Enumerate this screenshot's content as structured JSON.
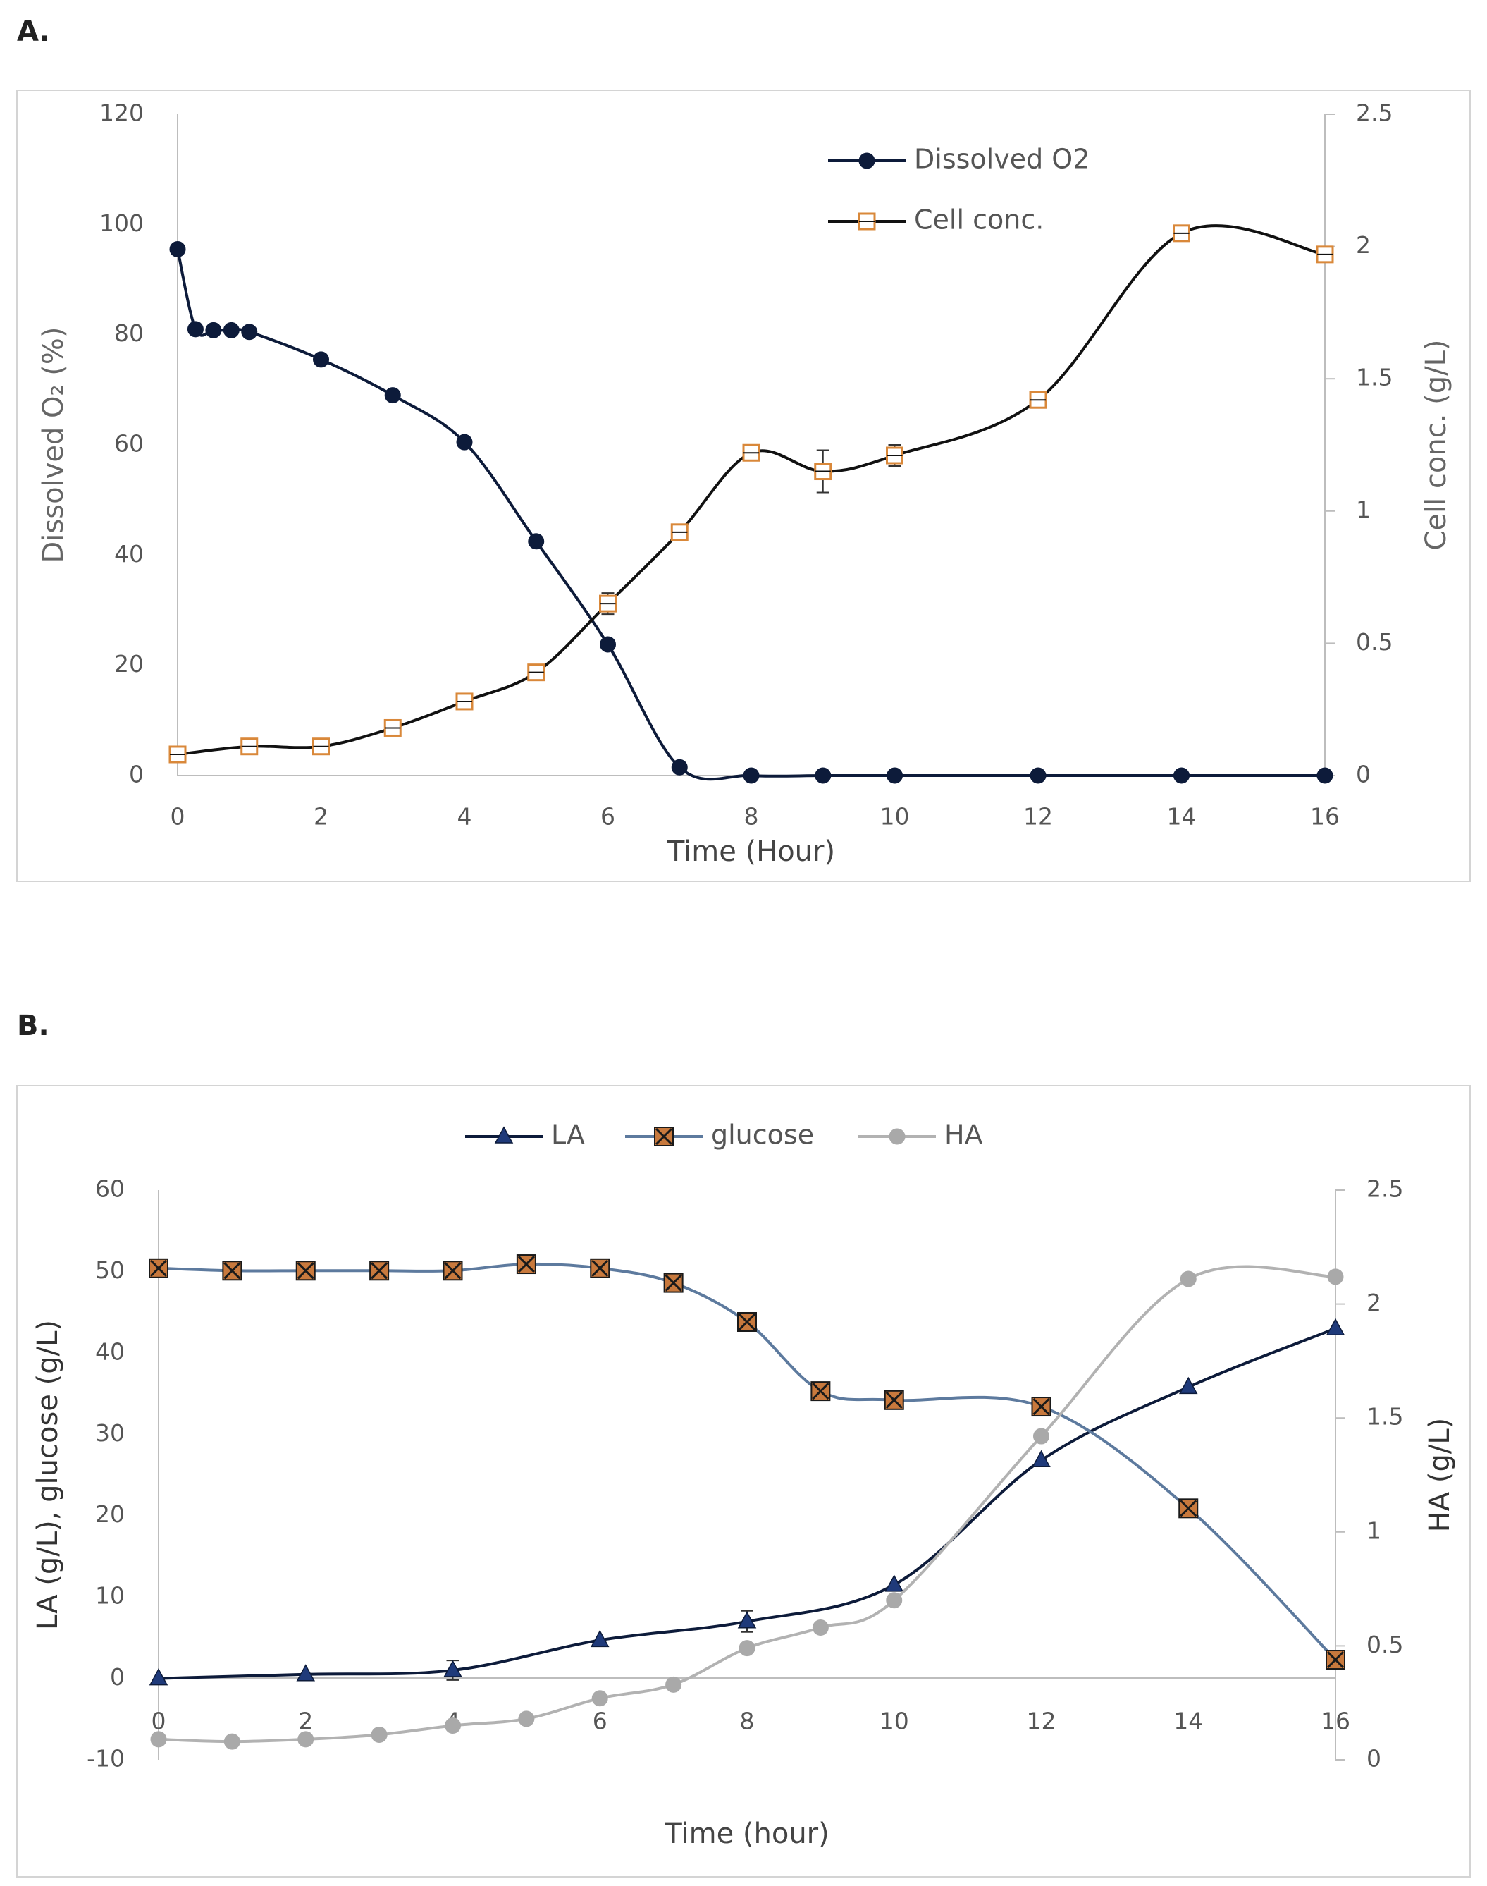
{
  "panels": {
    "a": {
      "letter": "A."
    },
    "b": {
      "letter": "B."
    }
  },
  "chart_data": [
    {
      "type": "line",
      "panel": "A.",
      "xlabel": "Time (Hour)",
      "ylabel": "Dissolved O₂ (%)",
      "y2label": "Cell  conc.  (g/L)",
      "xlim": [
        0,
        16
      ],
      "ylim": [
        0,
        120
      ],
      "y2lim": [
        0,
        2.5
      ],
      "xticks": [
        "0",
        "2",
        "4",
        "6",
        "8",
        "10",
        "12",
        "14",
        "16"
      ],
      "yticks": [
        "0",
        "20",
        "40",
        "60",
        "80",
        "100",
        "120"
      ],
      "y2ticks": [
        "0",
        "0.5",
        "1",
        "1.5",
        "2",
        "2.5"
      ],
      "legend_position": "top-center",
      "grid": false,
      "series": [
        {
          "name": "Dissolved O2",
          "axis": "left",
          "color": "#0d1b3a",
          "marker": "circle",
          "x": [
            0,
            0.25,
            0.5,
            0.75,
            1,
            2,
            3,
            4,
            5,
            6,
            7,
            8,
            9,
            10,
            12,
            14,
            16
          ],
          "y": [
            95.5,
            81,
            80.8,
            80.8,
            80.5,
            75.5,
            69,
            60.5,
            42.5,
            23.8,
            1.5,
            0,
            0,
            0,
            0,
            0,
            0
          ]
        },
        {
          "name": "Cell conc.",
          "axis": "right",
          "color": "#111111",
          "markerColor": "#d9883a",
          "marker": "square-open",
          "x": [
            0,
            1,
            2,
            3,
            4,
            5,
            6,
            7,
            8,
            9,
            10,
            12,
            14,
            16
          ],
          "y": [
            0.08,
            0.11,
            0.11,
            0.18,
            0.28,
            0.39,
            0.65,
            0.92,
            1.22,
            1.15,
            1.21,
            1.42,
            2.05,
            1.97
          ],
          "err": [
            0,
            0,
            0,
            0,
            0,
            0,
            0.04,
            0,
            0,
            0.08,
            0.04,
            0,
            0,
            0
          ]
        }
      ]
    },
    {
      "type": "line",
      "panel": "B.",
      "xlabel": "Time (hour)",
      "ylabel": "LA (g/L), glucose (g/L)",
      "y2label": "HA (g/L)",
      "xlim": [
        0,
        16
      ],
      "ylim": [
        -10,
        60
      ],
      "y2lim": [
        0,
        2.5
      ],
      "xticks": [
        "0",
        "2",
        "4",
        "6",
        "8",
        "10",
        "12",
        "14",
        "16"
      ],
      "yticks": [
        "-10",
        "0",
        "10",
        "20",
        "30",
        "40",
        "50",
        "60"
      ],
      "y2ticks": [
        "0",
        "0.5",
        "1",
        "1.5",
        "2",
        "2.5"
      ],
      "legend_position": "top-center",
      "grid": false,
      "series": [
        {
          "name": "LA",
          "axis": "left",
          "color": "#0d1b3a",
          "markerColor": "#1f3a7a",
          "marker": "triangle",
          "x": [
            0,
            2,
            4,
            6,
            8,
            10,
            12,
            14,
            16
          ],
          "y": [
            0,
            0.5,
            1,
            4.7,
            7,
            11.5,
            26.8,
            35.8,
            43
          ],
          "err": [
            0,
            0,
            1.2,
            0,
            1.3,
            0,
            0,
            0,
            0
          ]
        },
        {
          "name": "glucose",
          "axis": "left",
          "color": "#5d7a9e",
          "markerColor": "#c8793d",
          "marker": "square-x",
          "x": [
            0,
            1,
            2,
            3,
            4,
            5,
            6,
            7,
            8,
            9,
            10,
            12,
            14,
            16
          ],
          "y": [
            50.4,
            50.1,
            50.1,
            50.1,
            50.1,
            50.9,
            50.4,
            48.6,
            43.8,
            35.3,
            34.2,
            33.4,
            20.9,
            2.3
          ],
          "err": [
            0,
            0,
            0,
            0,
            0,
            0,
            0,
            0,
            0,
            0.9,
            0,
            0,
            0,
            0
          ]
        },
        {
          "name": "HA",
          "axis": "right",
          "color": "#b2b2b2",
          "markerColor": "#a9a9a9",
          "marker": "circle",
          "x": [
            0,
            1,
            2,
            3,
            4,
            5,
            6,
            7,
            8,
            9,
            10,
            12,
            14,
            16
          ],
          "y": [
            0.09,
            0.08,
            0.09,
            0.11,
            0.15,
            0.18,
            0.27,
            0.33,
            0.49,
            0.58,
            0.7,
            1.42,
            2.11,
            2.12
          ]
        }
      ]
    }
  ]
}
